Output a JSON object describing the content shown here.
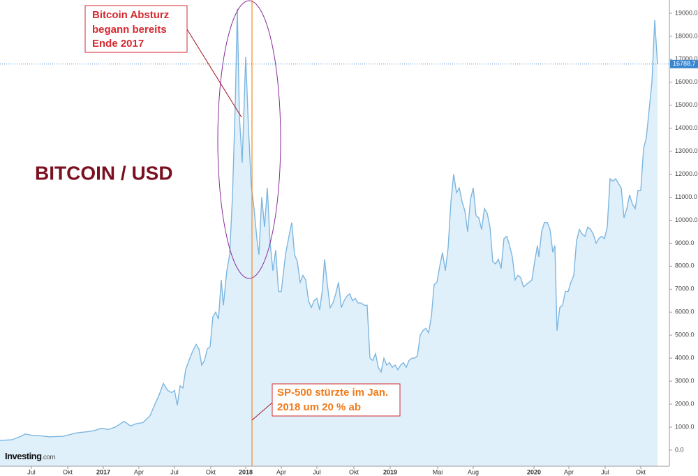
{
  "chart_data": {
    "type": "area",
    "title": "BITCOIN / USD",
    "logo": [
      "Investing",
      ".com"
    ],
    "annotations": [
      {
        "lines": [
          "Bitcoin Absturz",
          "begann bereits",
          "Ende 2017"
        ]
      },
      {
        "lines": [
          "SP-500 stürzte im Jan.",
          "2018 um 20 % ab"
        ]
      }
    ],
    "xlim": [
      0,
      240
    ],
    "xticks": [
      {
        "value": 11.25,
        "label": "Jul"
      },
      {
        "value": 24.25,
        "label": "Okt"
      },
      {
        "value": 37,
        "label": "2017"
      },
      {
        "value": 49.75,
        "label": "Apr"
      },
      {
        "value": 62.5,
        "label": "Jul"
      },
      {
        "value": 75.5,
        "label": "Okt"
      },
      {
        "value": 88,
        "label": "2018"
      },
      {
        "value": 100.75,
        "label": "Apr"
      },
      {
        "value": 113.5,
        "label": "Jul"
      },
      {
        "value": 126.75,
        "label": "Okt"
      },
      {
        "value": 139.75,
        "label": "2019"
      },
      {
        "value": 156.75,
        "label": "Mai"
      },
      {
        "value": 169.5,
        "label": "Aug"
      },
      {
        "value": 191.25,
        "label": "2020"
      },
      {
        "value": 203.75,
        "label": "Apr"
      },
      {
        "value": 216.75,
        "label": "Jul"
      },
      {
        "value": 229.5,
        "label": "Okt"
      }
    ],
    "ylim": [
      -700,
      19575
    ],
    "yticks": [
      {
        "value": 0,
        "label": "0.0"
      },
      {
        "value": 1000,
        "label": "1000.0"
      },
      {
        "value": 2000,
        "label": "2000.0"
      },
      {
        "value": 3000,
        "label": "3000.0"
      },
      {
        "value": 4000,
        "label": "4000.0"
      },
      {
        "value": 5000,
        "label": "5000.0"
      },
      {
        "value": 6000,
        "label": "6000.0"
      },
      {
        "value": 7000,
        "label": "7000.0"
      },
      {
        "value": 8000,
        "label": "8000.0"
      },
      {
        "value": 9000,
        "label": "9000.0"
      },
      {
        "value": 10000,
        "label": "10000.0"
      },
      {
        "value": 11000,
        "label": "11000.0"
      },
      {
        "value": 12000,
        "label": "12000.0"
      },
      {
        "value": 13000,
        "label": "13000.0"
      },
      {
        "value": 14000,
        "label": "14000.0"
      },
      {
        "value": 15000,
        "label": "15000.0"
      },
      {
        "value": 16000,
        "label": "16000.0"
      },
      {
        "value": 17000,
        "label": "17000.0"
      },
      {
        "value": 18000,
        "label": "18000.0"
      },
      {
        "value": 19000,
        "label": "19000.0"
      }
    ],
    "series": [
      {
        "color": "#7db6e0",
        "fill": "#dff0fb",
        "x": [
          0,
          4.25,
          7.5,
          9,
          11.25,
          15,
          17.5,
          22.5,
          27.5,
          31.25,
          33.75,
          36.25,
          38.75,
          41.25,
          44.5,
          46.75,
          48.75,
          51.25,
          53.75,
          55.5,
          57,
          58.5,
          60,
          61.5,
          62.5,
          63.5,
          64.5,
          65.5,
          66.5,
          68,
          69,
          70.25,
          71.25,
          72.25,
          73.25,
          74.25,
          75.25,
          76.25,
          77.25,
          78.25,
          79.25,
          80,
          81.25,
          82.25,
          83.25,
          84.25,
          85,
          85.75,
          86.75,
          88,
          89,
          90,
          91,
          92,
          92.75,
          93.75,
          94.75,
          95.75,
          96.75,
          97.75,
          98.75,
          99.75,
          100.75,
          102.25,
          103.5,
          104.5,
          105.5,
          106.5,
          107.5,
          108.5,
          109.5,
          110.5,
          111.5,
          112.5,
          113.5,
          114.5,
          115.5,
          116.25,
          117.25,
          118.25,
          119.25,
          120.25,
          121.25,
          122.25,
          123.25,
          124.25,
          125.25,
          126.25,
          127.25,
          128.25,
          129.25,
          130.5,
          131.5,
          132.5,
          133.5,
          134.5,
          135.5,
          136.5,
          137.5,
          138.5,
          139.5,
          140.5,
          141.5,
          142.5,
          143.5,
          144.5,
          145.5,
          146.5,
          147.5,
          148.5,
          149.5,
          150.5,
          151.5,
          152.5,
          153.5,
          154.5,
          155.5,
          156.5,
          157.5,
          158.5,
          159.5,
          160.5,
          161.5,
          162.5,
          163.5,
          164.5,
          165.5,
          166.5,
          167.5,
          168.5,
          169.5,
          170.5,
          171.5,
          172.5,
          173.5,
          174.5,
          175.5,
          176.5,
          177.5,
          178.5,
          179.5,
          180.5,
          181.5,
          182.5,
          183.5,
          184.5,
          185.5,
          186.5,
          187.5,
          188.5,
          189.5,
          190.5,
          191.5,
          192.5,
          193,
          194,
          195,
          196,
          197,
          198,
          198.75,
          199.5,
          200.5,
          201.5,
          202.5,
          203.5,
          204.5,
          205.5,
          206.5,
          207.5,
          208.5,
          209.5,
          210.5,
          211.5,
          212.5,
          213.5,
          214.5,
          215.5,
          216.5,
          217.5,
          218.5,
          219.5,
          220.5,
          221.5,
          222.5,
          223.5,
          224.5,
          225.5,
          226.5,
          227.5,
          228.5,
          229.5,
          230.5,
          231.5,
          232.5,
          233.5,
          234.5,
          235.5
        ],
        "values": [
          420,
          450,
          600,
          700,
          650,
          620,
          580,
          600,
          750,
          800,
          850,
          950,
          900,
          1000,
          1250,
          1050,
          1150,
          1200,
          1500,
          2000,
          2400,
          2900,
          2600,
          2500,
          2600,
          1950,
          2800,
          2700,
          3500,
          4000,
          4300,
          4600,
          4400,
          3700,
          3900,
          4400,
          4500,
          5800,
          6000,
          5700,
          7400,
          6300,
          7800,
          8500,
          11000,
          15000,
          19200,
          14500,
          12500,
          17100,
          14000,
          11500,
          10500,
          9200,
          8500,
          11000,
          9700,
          11400,
          9000,
          7800,
          8700,
          6900,
          6900,
          8500,
          9300,
          9900,
          8500,
          8200,
          7300,
          7600,
          7400,
          6500,
          6200,
          6500,
          6600,
          6100,
          7000,
          8300,
          7200,
          6200,
          6400,
          6800,
          7300,
          6200,
          6500,
          6700,
          6800,
          6500,
          6600,
          6400,
          6400,
          6300,
          6300,
          4000,
          3900,
          4200,
          3600,
          3400,
          4000,
          3700,
          3800,
          3600,
          3700,
          3500,
          3700,
          3800,
          3600,
          3900,
          4000,
          4000,
          4100,
          5000,
          5200,
          5300,
          5100,
          5800,
          7200,
          7300,
          8000,
          8600,
          7800,
          8800,
          10800,
          12000,
          11200,
          11400,
          10800,
          10400,
          9500,
          10900,
          11400,
          10200,
          10100,
          9600,
          10500,
          10300,
          9700,
          8200,
          8100,
          8300,
          7900,
          9200,
          9300,
          8900,
          8400,
          7400,
          7600,
          7500,
          7100,
          7200,
          7300,
          7400,
          8200,
          8900,
          8400,
          9500,
          9900,
          9900,
          9600,
          8600,
          8900,
          5200,
          6200,
          6300,
          6900,
          6900,
          7300,
          7600,
          9100,
          9600,
          9400,
          9300,
          9700,
          9600,
          9400,
          9000,
          9200,
          9300,
          9200,
          9700,
          11800,
          11700,
          11800,
          11600,
          11400,
          10100,
          10500,
          11100,
          10700,
          10500,
          11300,
          11300,
          13100,
          13600,
          14800,
          16000,
          18700,
          16788.7
        ]
      }
    ]
  }
}
